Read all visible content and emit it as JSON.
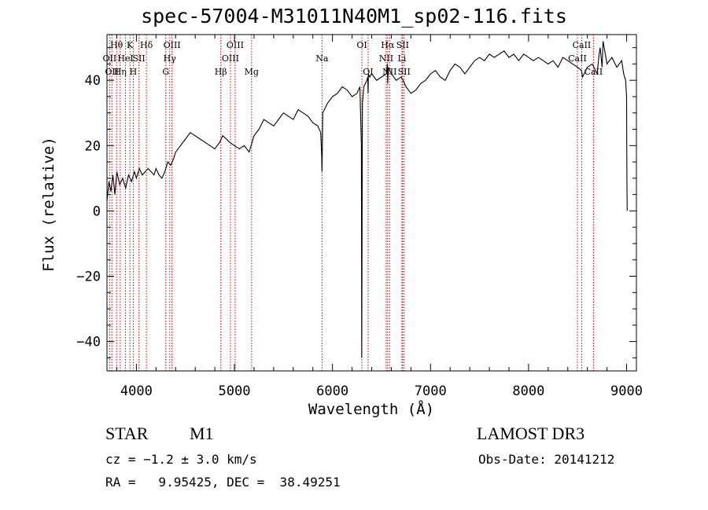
{
  "chart_data": {
    "type": "line",
    "title": "spec-57004-M31011N40M1_sp02-116.fits",
    "xlabel": "Wavelength (Å)",
    "ylabel": "Flux (relative)",
    "xlim": [
      3700,
      9100
    ],
    "ylim": [
      -49,
      54
    ],
    "xticks": [
      4000,
      5000,
      6000,
      7000,
      8000,
      9000
    ],
    "yticks": [
      -40,
      -20,
      0,
      20,
      40
    ],
    "series": [
      {
        "name": "flux",
        "x": [
          3700,
          3720,
          3740,
          3760,
          3780,
          3800,
          3830,
          3860,
          3890,
          3920,
          3950,
          3980,
          4000,
          4030,
          4060,
          4090,
          4120,
          4150,
          4180,
          4200,
          4230,
          4260,
          4290,
          4320,
          4350,
          4380,
          4400,
          4450,
          4500,
          4550,
          4600,
          4650,
          4700,
          4750,
          4800,
          4850,
          4880,
          4920,
          4950,
          5000,
          5050,
          5100,
          5150,
          5200,
          5250,
          5300,
          5350,
          5400,
          5450,
          5500,
          5550,
          5600,
          5650,
          5700,
          5750,
          5800,
          5850,
          5880,
          5890,
          5893,
          5896,
          5900,
          5950,
          6000,
          6050,
          6100,
          6150,
          6200,
          6250,
          6280,
          6295,
          6298,
          6300,
          6305,
          6320,
          6350,
          6360,
          6363,
          6366,
          6380,
          6400,
          6450,
          6500,
          6550,
          6560,
          6563,
          6570,
          6600,
          6650,
          6700,
          6720,
          6750,
          6800,
          6850,
          6900,
          6950,
          7000,
          7050,
          7100,
          7150,
          7200,
          7250,
          7300,
          7350,
          7400,
          7450,
          7500,
          7550,
          7600,
          7650,
          7700,
          7750,
          7800,
          7850,
          7900,
          7950,
          8000,
          8050,
          8100,
          8150,
          8200,
          8250,
          8300,
          8350,
          8400,
          8450,
          8500,
          8540,
          8550,
          8600,
          8650,
          8700,
          8720,
          8730,
          8750,
          8760,
          8800,
          8850,
          8900,
          8950,
          8970,
          8990,
          9000,
          9003,
          9006
        ],
        "y": [
          3,
          9,
          6,
          11,
          5,
          12,
          8,
          10,
          7,
          11,
          9,
          12,
          10,
          13,
          11,
          12,
          13,
          12,
          11,
          13,
          11,
          10,
          12,
          15,
          14,
          16,
          18,
          20,
          22,
          24,
          23,
          22,
          21,
          20,
          19,
          21,
          23,
          22,
          21,
          20,
          19,
          20,
          18,
          23,
          25,
          28,
          27,
          26,
          28,
          30,
          29,
          28,
          31,
          30,
          29,
          27,
          26,
          24,
          17,
          12,
          18,
          30,
          33,
          35,
          36,
          38,
          37,
          35,
          36,
          38,
          20,
          -45,
          -28,
          33,
          38,
          40,
          41,
          36,
          42,
          41,
          42,
          40,
          41,
          42,
          45,
          39,
          44,
          42,
          40,
          41,
          40,
          38,
          36,
          37,
          39,
          40,
          42,
          43,
          41,
          40,
          43,
          45,
          44,
          42,
          44,
          46,
          47,
          46,
          48,
          47,
          48,
          49,
          47,
          48,
          46,
          48,
          47,
          46,
          47,
          46,
          45,
          46,
          44,
          47,
          46,
          45,
          44,
          43,
          41,
          44,
          45,
          42,
          48,
          50,
          44,
          52,
          45,
          47,
          44,
          46,
          42,
          40,
          35,
          10,
          0
        ]
      }
    ],
    "line_markers": [
      {
        "wavelength": 3727,
        "label": "OII",
        "row": 2
      },
      {
        "wavelength": 3750,
        "label": "OII",
        "row": 3
      },
      {
        "wavelength": 3798,
        "label": "Hθ",
        "row": 1
      },
      {
        "wavelength": 3835,
        "label": "Hη",
        "row": 3
      },
      {
        "wavelength": 3889,
        "label": "HeI",
        "row": 2
      },
      {
        "wavelength": 3934,
        "label": "K",
        "row": 1
      },
      {
        "wavelength": 3968,
        "label": "H",
        "row": 3
      },
      {
        "wavelength": 4026,
        "label": "SII",
        "row": 2
      },
      {
        "wavelength": 4102,
        "label": "Hδ",
        "row": 1
      },
      {
        "wavelength": 4300,
        "label": "G",
        "row": 3
      },
      {
        "wavelength": 4340,
        "label": "Hγ",
        "row": 2
      },
      {
        "wavelength": 4363,
        "label": "OIII",
        "row": 1
      },
      {
        "wavelength": 4861,
        "label": "Hβ",
        "row": 3
      },
      {
        "wavelength": 4959,
        "label": "OIII",
        "row": 2
      },
      {
        "wavelength": 5007,
        "label": "OIII",
        "row": 1
      },
      {
        "wavelength": 5175,
        "label": "Mg",
        "row": 3
      },
      {
        "wavelength": 5893,
        "label": "Na",
        "row": 2
      },
      {
        "wavelength": 6300,
        "label": "OI",
        "row": 1
      },
      {
        "wavelength": 6363,
        "label": "OI",
        "row": 3
      },
      {
        "wavelength": 6548,
        "label": "NII",
        "row": 2
      },
      {
        "wavelength": 6563,
        "label": "Hα",
        "row": 1
      },
      {
        "wavelength": 6583,
        "label": "NII",
        "row": 3
      },
      {
        "wavelength": 6708,
        "label": "Li",
        "row": 2
      },
      {
        "wavelength": 6716,
        "label": "SII",
        "row": 1
      },
      {
        "wavelength": 6731,
        "label": "SII",
        "row": 3
      },
      {
        "wavelength": 8498,
        "label": "CaII",
        "row": 2
      },
      {
        "wavelength": 8542,
        "label": "CaII",
        "row": 1
      },
      {
        "wavelength": 8662,
        "label": "CaII",
        "row": 3
      }
    ],
    "colors": {
      "spectrum": "#000000",
      "line_markers": "#cc0000",
      "axes": "#000000"
    }
  },
  "info": {
    "object_class": "STAR",
    "subclass": "M1",
    "survey": "LAMOST DR3",
    "redshift": "cz = −1.2 ± 3.0 km/s",
    "obs_date": "Obs-Date: 20141212",
    "coords": "RA =   9.95425, DEC =  38.49251"
  }
}
